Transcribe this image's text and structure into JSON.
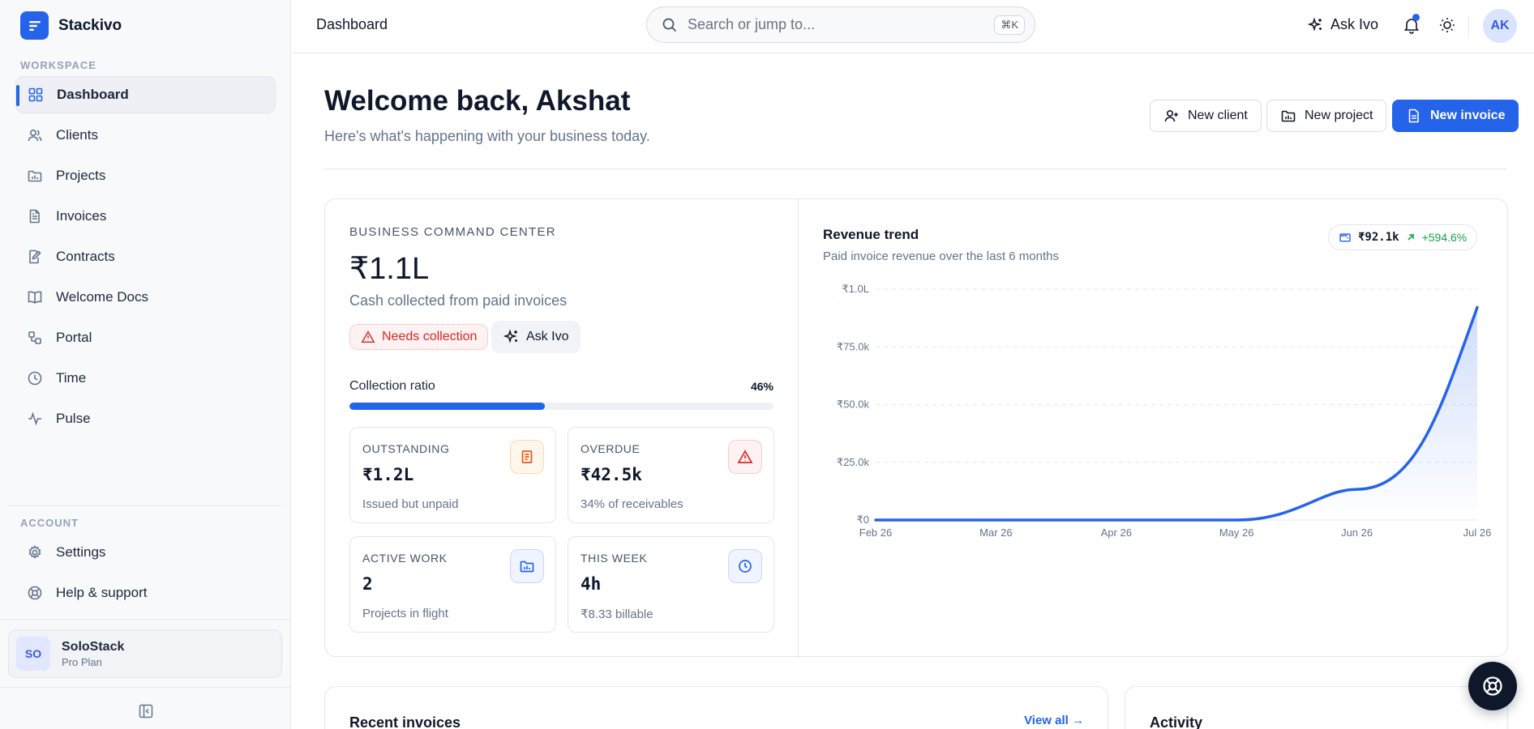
{
  "brand": {
    "name": "Stackivo",
    "accent": "#2563eb"
  },
  "sidebar": {
    "workspace_label": "WORKSPACE",
    "items": [
      {
        "label": "Dashboard",
        "icon": "dashboard-icon",
        "active": true
      },
      {
        "label": "Clients",
        "icon": "users-icon"
      },
      {
        "label": "Projects",
        "icon": "folder-icon"
      },
      {
        "label": "Invoices",
        "icon": "file-text-icon"
      },
      {
        "label": "Contracts",
        "icon": "file-signature-icon"
      },
      {
        "label": "Welcome Docs",
        "icon": "book-icon"
      },
      {
        "label": "Portal",
        "icon": "portal-icon"
      },
      {
        "label": "Time",
        "icon": "clock-icon"
      },
      {
        "label": "Pulse",
        "icon": "pulse-icon"
      }
    ],
    "account_label": "ACCOUNT",
    "account_items": [
      {
        "label": "Settings",
        "icon": "gear-icon"
      },
      {
        "label": "Help & support",
        "icon": "lifebuoy-icon"
      }
    ],
    "user": {
      "initials": "SO",
      "name": "SoloStack",
      "plan": "Pro Plan"
    }
  },
  "topbar": {
    "title": "Dashboard",
    "search_placeholder": "Search or jump to...",
    "search_shortcut": "⌘K",
    "ask_label": "Ask Ivo",
    "avatar_initials": "AK"
  },
  "header": {
    "welcome": "Welcome back, Akshat",
    "subtitle": "Here's what's happening with your business today.",
    "buttons": {
      "new_client": "New client",
      "new_project": "New project",
      "new_invoice": "New invoice"
    }
  },
  "command_center": {
    "label": "BUSINESS COMMAND CENTER",
    "value": "₹1.1L",
    "subtitle": "Cash collected from paid invoices",
    "warn_pill": "Needs collection",
    "ask_pill": "Ask Ivo",
    "collection_ratio_label": "Collection ratio",
    "collection_ratio_value": "46%",
    "collection_ratio": 0.46,
    "stats": [
      {
        "label": "OUTSTANDING",
        "value": "₹1.2L",
        "sub": "Issued but unpaid",
        "icon": "receipt-icon",
        "color": "#ea580c",
        "bg": "#fff7ed",
        "border": "#fed7aa"
      },
      {
        "label": "OVERDUE",
        "value": "₹42.5k",
        "sub": "34% of receivables",
        "icon": "alert-triangle-icon",
        "color": "#dc2626",
        "bg": "#fef2f2",
        "border": "#fecaca"
      },
      {
        "label": "ACTIVE WORK",
        "value": "2",
        "sub": "Projects in flight",
        "icon": "folder-chart-icon",
        "color": "#2563eb",
        "bg": "#eff4ff",
        "border": "#c7d7fe"
      },
      {
        "label": "THIS WEEK",
        "value": "4h",
        "sub": "₹8.33 billable",
        "icon": "clock-icon",
        "color": "#2563eb",
        "bg": "#eff4ff",
        "border": "#c7d7fe"
      }
    ]
  },
  "revenue": {
    "title": "Revenue trend",
    "subtitle": "Paid invoice revenue over the last 6 months",
    "pill_value": "₹92.1k",
    "pill_change": "+594.6%"
  },
  "chart_data": {
    "type": "area",
    "x": [
      "Feb 26",
      "Mar 26",
      "Apr 26",
      "May 26",
      "Jun 26",
      "Jul 26"
    ],
    "series": [
      {
        "values": [
          0,
          0,
          0,
          0,
          13300,
          92100
        ]
      }
    ],
    "y_ticks": [
      "₹0",
      "₹25.0k",
      "₹50.0k",
      "₹75.0k",
      "₹1.0L"
    ],
    "ylim": [
      0,
      100000
    ],
    "grid": true,
    "line_color": "#2563eb"
  },
  "bottom": {
    "recent_invoices": "Recent invoices",
    "view_all": "View all →",
    "activity": "Activity"
  }
}
